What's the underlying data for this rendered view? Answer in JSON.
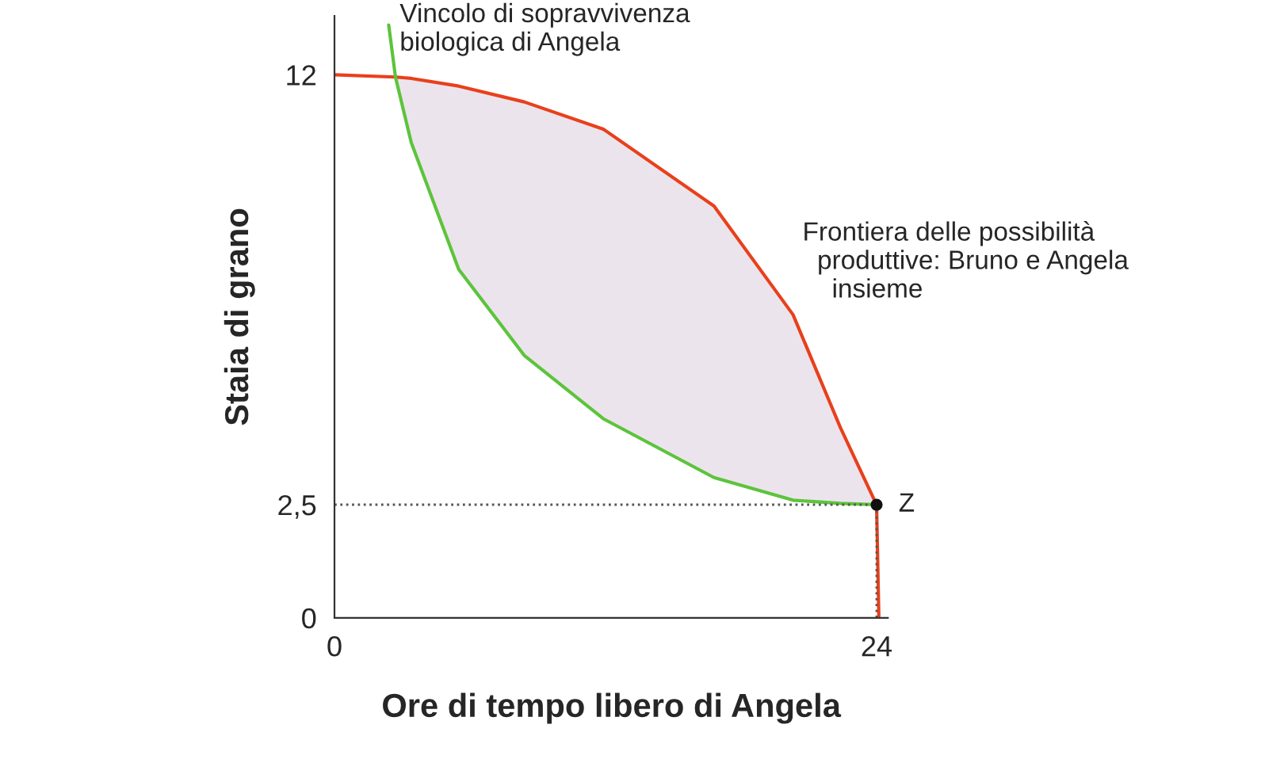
{
  "chart_data": {
    "type": "line",
    "xlabel": "Ore di tempo libero di Angela",
    "ylabel": "Staia di grano",
    "xlim": [
      0,
      24.5
    ],
    "ylim": [
      0,
      13.3
    ],
    "xticks": [
      0,
      24
    ],
    "yticks": [
      0,
      {
        "value": 2.5,
        "label": "2,5"
      },
      12
    ],
    "grid": false,
    "legend": false,
    "series": [
      {
        "color": "#e8401c",
        "x": [
          0,
          2.7,
          3.4,
          5.5,
          8.4,
          11.9,
          16.8,
          20.3,
          22.4,
          24,
          24.1
        ],
        "values": [
          12,
          11.95,
          11.92,
          11.75,
          11.4,
          10.8,
          9.1,
          6.7,
          4.2,
          2.5,
          0
        ],
        "lower": [
          null,
          11.95,
          10.5,
          7.7,
          5.8,
          4.4,
          3.1,
          2.6,
          2.53,
          2.5,
          null
        ],
        "upper": [
          null,
          11.95,
          11.92,
          11.75,
          11.4,
          10.8,
          9.1,
          6.7,
          4.2,
          2.5,
          null
        ]
      },
      {
        "color": "#5cc43c",
        "x": [
          2.4,
          2.7,
          3.4,
          5.5,
          8.4,
          11.9,
          16.8,
          20.3,
          22.4,
          24
        ],
        "values": [
          13.1,
          11.95,
          10.5,
          7.7,
          5.8,
          4.4,
          3.1,
          2.6,
          2.53,
          2.5
        ]
      },
      {
        "type": "scatter",
        "color": "#111111",
        "x": [
          24
        ],
        "values": [
          2.5
        ]
      }
    ],
    "ref_lines": [
      {
        "axis": "y",
        "value": 2.5,
        "color": "#555555",
        "line_style": "dotted"
      },
      {
        "axis": "x",
        "value": 24,
        "color": "#555555",
        "line_style": "dotted"
      }
    ],
    "annotations": [
      {
        "text": "Vincolo di sopravvivenza\nbiologica di Angela",
        "x": 2.4,
        "y": 13.1
      },
      {
        "text": "Frontiera delle possibilità\n  produttive: Bruno e Angela\n    insieme",
        "x": 21.5,
        "y": 5.5
      },
      {
        "text": "Z",
        "x": 24,
        "y": 2.5
      }
    ]
  }
}
